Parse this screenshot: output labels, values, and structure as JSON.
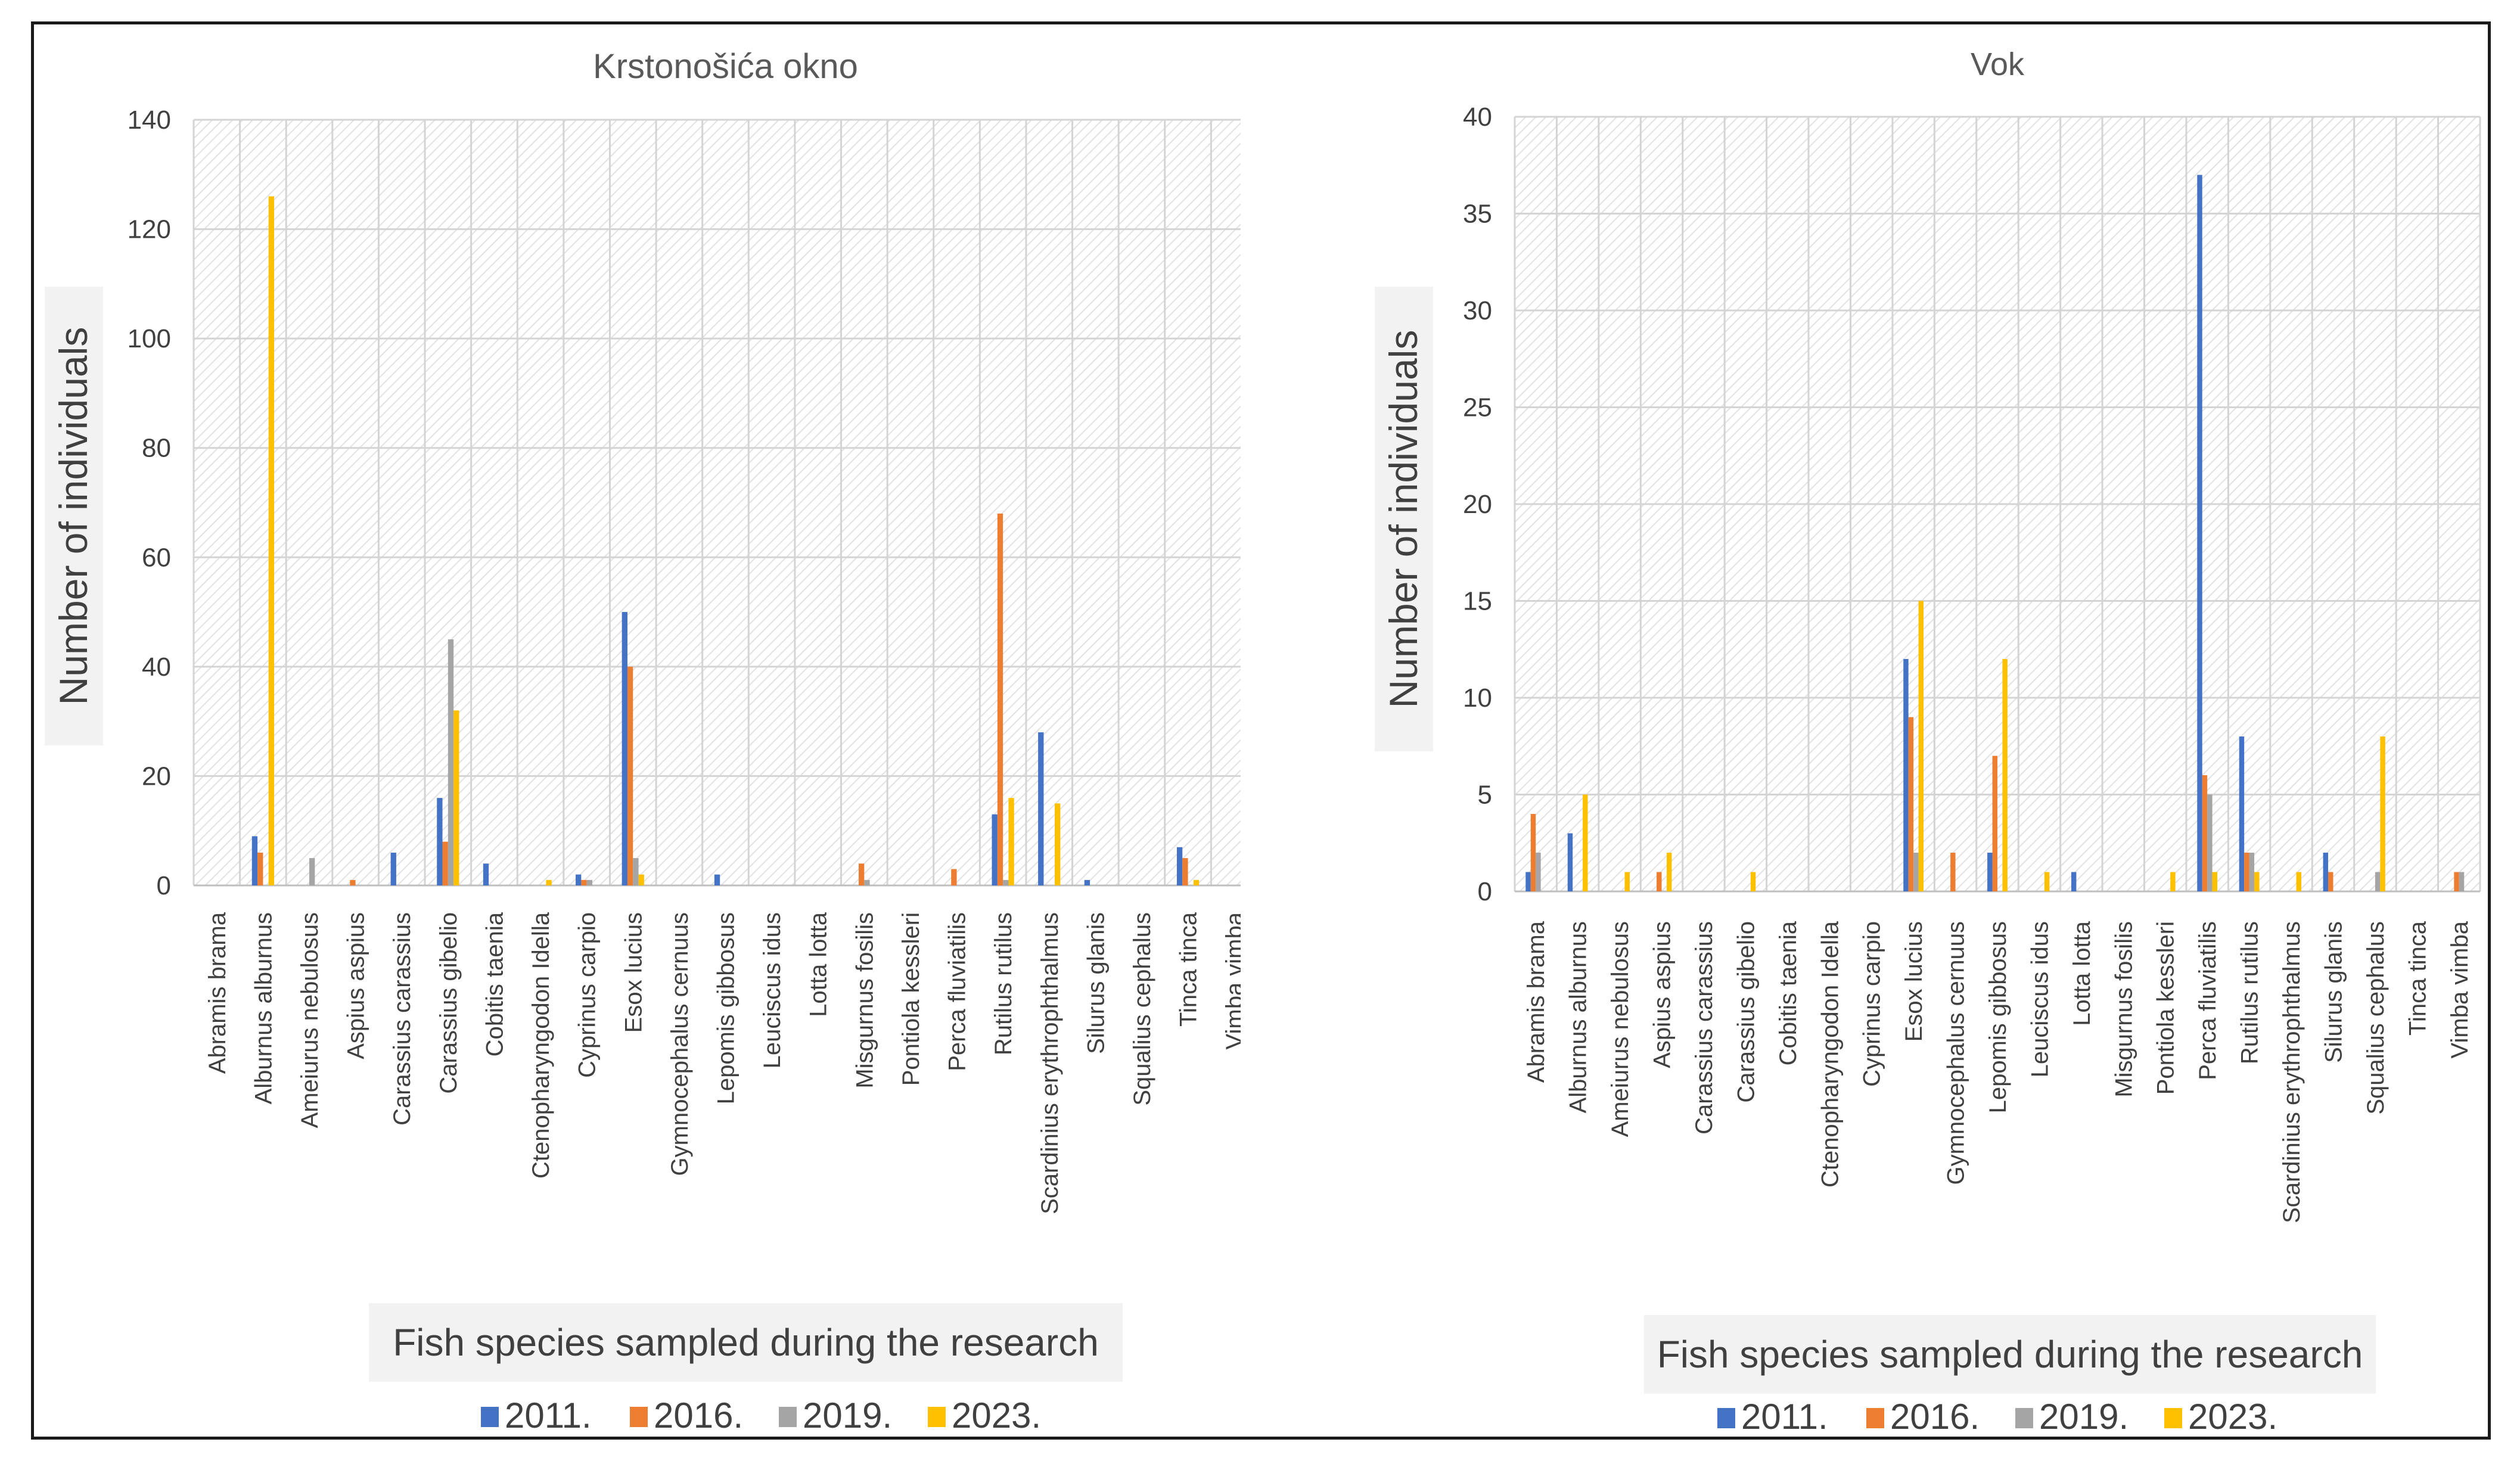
{
  "chart_data": [
    {
      "type": "bar",
      "title": "Krstonošića okno",
      "xlabel": "Fish species sampled during the research",
      "ylabel": "Number of individuals",
      "ylim": [
        0,
        140
      ],
      "yticks": [
        0,
        20,
        40,
        60,
        80,
        100,
        120,
        140
      ],
      "grid": true,
      "legend_position": "bottom",
      "categories": [
        "Abramis brama",
        "Alburnus alburnus",
        "Ameiurus nebulosus",
        "Aspius aspius",
        "Carassius carassius",
        "Carassius gibelio",
        "Cobitis taenia",
        "Ctenopharyngodon Idella",
        "Cyprinus carpio",
        "Esox lucius",
        "Gymnocephalus cernuus",
        "Lepomis gibbosus",
        "Leuciscus idus",
        "Lotta lotta",
        "Misgurnus fosilis",
        "Pontiola kessleri",
        "Perca fluviatilis",
        "Rutilus rutilus",
        "Scardinius erythrophthalmus",
        "Silurus glanis",
        "Squalius cephalus",
        "Tinca tinca",
        "Vimba vimba"
      ],
      "series": [
        {
          "name": "2011.",
          "color": "#4472C4",
          "values": [
            0,
            9,
            0,
            0,
            6,
            16,
            4,
            0,
            2,
            50,
            0,
            2,
            0,
            0,
            0,
            0,
            0,
            13,
            28,
            1,
            0,
            7,
            0
          ]
        },
        {
          "name": "2016.",
          "color": "#ED7D31",
          "values": [
            0,
            6,
            0,
            1,
            0,
            8,
            0,
            0,
            1,
            40,
            0,
            0,
            0,
            0,
            4,
            0,
            3,
            68,
            0,
            0,
            0,
            5,
            0
          ]
        },
        {
          "name": "2019.",
          "color": "#A5A5A5",
          "values": [
            0,
            0,
            5,
            0,
            0,
            45,
            0,
            0,
            1,
            5,
            0,
            0,
            0,
            0,
            1,
            0,
            0,
            1,
            0,
            0,
            0,
            0,
            0
          ]
        },
        {
          "name": "2023.",
          "color": "#FFC000",
          "values": [
            0,
            126,
            0,
            0,
            0,
            32,
            0,
            1,
            0,
            2,
            0,
            0,
            0,
            0,
            0,
            0,
            0,
            16,
            15,
            0,
            0,
            1,
            0
          ]
        }
      ]
    },
    {
      "type": "bar",
      "title": "Vok",
      "xlabel": "Fish species sampled during the research",
      "ylabel": "Number of individuals",
      "ylim": [
        0,
        40
      ],
      "yticks": [
        0,
        5,
        10,
        15,
        20,
        25,
        30,
        35,
        40
      ],
      "grid": true,
      "legend_position": "bottom",
      "categories": [
        "Abramis brama",
        "Alburnus alburnus",
        "Ameiurus nebulosus",
        "Aspius aspius",
        "Carassius carassius",
        "Carassius gibelio",
        "Cobitis taenia",
        "Ctenopharyngodon Idella",
        "Cyprinus carpio",
        "Esox lucius",
        "Gymnocephalus cernuus",
        "Lepomis gibbosus",
        "Leuciscus idus",
        "Lotta lotta",
        "Misgurnus fosilis",
        "Pontiola kessleri",
        "Perca fluviatilis",
        "Rutilus rutilus",
        "Scardinius erythrophthalmus",
        "Silurus glanis",
        "Squalius cephalus",
        "Tinca tinca",
        "Vimba vimba"
      ],
      "series": [
        {
          "name": "2011.",
          "color": "#4472C4",
          "values": [
            1,
            3,
            0,
            0,
            0,
            0,
            0,
            0,
            0,
            12,
            0,
            2,
            0,
            1,
            0,
            0,
            37,
            8,
            0,
            2,
            0,
            0,
            0
          ]
        },
        {
          "name": "2016.",
          "color": "#ED7D31",
          "values": [
            4,
            0,
            0,
            1,
            0,
            0,
            0,
            0,
            0,
            9,
            2,
            7,
            0,
            0,
            0,
            0,
            6,
            2,
            0,
            1,
            0,
            0,
            1
          ]
        },
        {
          "name": "2019.",
          "color": "#A5A5A5",
          "values": [
            2,
            0,
            0,
            0,
            0,
            0,
            0,
            0,
            0,
            2,
            0,
            0,
            0,
            0,
            0,
            0,
            5,
            2,
            0,
            0,
            1,
            0,
            1
          ]
        },
        {
          "name": "2023.",
          "color": "#FFC000",
          "values": [
            0,
            5,
            1,
            2,
            0,
            1,
            0,
            0,
            0,
            15,
            0,
            12,
            1,
            0,
            0,
            1,
            1,
            1,
            1,
            0,
            8,
            0,
            0
          ]
        }
      ]
    }
  ]
}
